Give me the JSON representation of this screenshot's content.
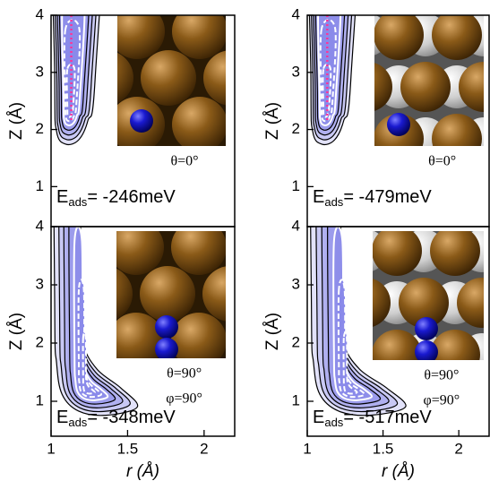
{
  "chart_data": [
    {
      "type": "contour",
      "ylabel": "Z (Å)",
      "xlim": [
        1,
        2.2
      ],
      "ylim": [
        0.3,
        4
      ],
      "yticks": [
        1,
        2,
        3,
        4
      ],
      "energy": {
        "symbol": "E",
        "subscript": "ads",
        "text": "= -246meV"
      },
      "angles": [
        "θ=0°"
      ]
    },
    {
      "type": "contour",
      "ylabel": "Z (Å)",
      "xlim": [
        1,
        2.2
      ],
      "ylim": [
        0.3,
        4
      ],
      "yticks": [
        1,
        2,
        3,
        4
      ],
      "energy": {
        "symbol": "E",
        "subscript": "ads",
        "text": "= -479meV"
      },
      "angles": [
        "θ=0°"
      ]
    },
    {
      "type": "contour",
      "ylabel": "Z (Å)",
      "xlabel": "r (Å)",
      "xlim": [
        1,
        2.2
      ],
      "ylim": [
        0.4,
        4
      ],
      "yticks": [
        1,
        2,
        3,
        4
      ],
      "xticks": [
        1,
        1.5,
        2
      ],
      "energy": {
        "symbol": "E",
        "subscript": "ads",
        "text": "= -348meV"
      },
      "angles": [
        "θ=90°",
        "φ=90°"
      ]
    },
    {
      "type": "contour",
      "ylabel": "Z (Å)",
      "xlabel": "r (Å)",
      "xlim": [
        1,
        2.2
      ],
      "ylim": [
        0.4,
        4
      ],
      "yticks": [
        1,
        2,
        3,
        4
      ],
      "xticks": [
        1,
        1.5,
        2
      ],
      "energy": {
        "symbol": "E",
        "subscript": "ads",
        "text": "= -517meV"
      },
      "angles": [
        "θ=90°",
        "φ=90°"
      ]
    }
  ]
}
